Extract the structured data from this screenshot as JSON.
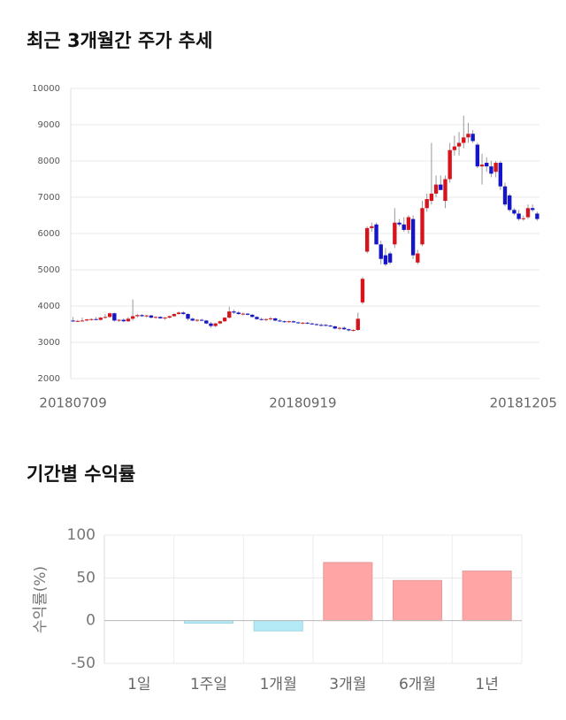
{
  "chart_data": [
    {
      "type": "candlestick",
      "title": "최근 3개월간 주가 추세",
      "categories": [
        "20180709",
        null,
        null,
        null,
        null,
        null,
        null,
        null,
        null,
        null,
        null,
        null,
        null,
        null,
        null,
        null,
        null,
        null,
        null,
        null,
        null,
        null,
        null,
        null,
        null,
        null,
        null,
        null,
        null,
        null,
        null,
        null,
        null,
        null,
        null,
        null,
        null,
        null,
        null,
        null,
        null,
        null,
        null,
        null,
        null,
        null,
        null,
        null,
        null,
        null,
        "20180919",
        null,
        null,
        null,
        null,
        null,
        null,
        null,
        null,
        null,
        null,
        null,
        null,
        null,
        null,
        null,
        null,
        null,
        null,
        null,
        null,
        null,
        null,
        null,
        null,
        null,
        null,
        null,
        null,
        null,
        null,
        null,
        null,
        null,
        null,
        null,
        null,
        null,
        null,
        null,
        null,
        null,
        null,
        null,
        null,
        null,
        null,
        null,
        "20181205",
        null,
        null,
        null
      ],
      "ohlc": [
        [
          3600,
          3700,
          3560,
          3580
        ],
        [
          3580,
          3620,
          3560,
          3590
        ],
        [
          3590,
          3680,
          3570,
          3600
        ],
        [
          3600,
          3650,
          3580,
          3630
        ],
        [
          3630,
          3660,
          3600,
          3640
        ],
        [
          3640,
          3700,
          3610,
          3620
        ],
        [
          3620,
          3700,
          3600,
          3680
        ],
        [
          3680,
          3780,
          3650,
          3700
        ],
        [
          3700,
          3820,
          3680,
          3800
        ],
        [
          3800,
          3820,
          3570,
          3600
        ],
        [
          3600,
          3640,
          3560,
          3620
        ],
        [
          3620,
          3660,
          3560,
          3580
        ],
        [
          3580,
          3700,
          3560,
          3650
        ],
        [
          3650,
          4180,
          3600,
          3720
        ],
        [
          3720,
          3780,
          3680,
          3750
        ],
        [
          3750,
          3780,
          3700,
          3720
        ],
        [
          3720,
          3760,
          3680,
          3740
        ],
        [
          3740,
          3760,
          3660,
          3680
        ],
        [
          3680,
          3720,
          3650,
          3700
        ],
        [
          3700,
          3720,
          3650,
          3660
        ],
        [
          3660,
          3700,
          3620,
          3680
        ],
        [
          3680,
          3740,
          3660,
          3720
        ],
        [
          3720,
          3800,
          3700,
          3780
        ],
        [
          3780,
          3850,
          3760,
          3820
        ],
        [
          3820,
          3860,
          3760,
          3780
        ],
        [
          3780,
          3800,
          3600,
          3650
        ],
        [
          3650,
          3680,
          3580,
          3600
        ],
        [
          3600,
          3640,
          3560,
          3620
        ],
        [
          3620,
          3650,
          3580,
          3600
        ],
        [
          3600,
          3620,
          3500,
          3520
        ],
        [
          3520,
          3560,
          3400,
          3450
        ],
        [
          3450,
          3540,
          3420,
          3520
        ],
        [
          3520,
          3600,
          3500,
          3580
        ],
        [
          3580,
          3700,
          3560,
          3680
        ],
        [
          3680,
          3980,
          3660,
          3850
        ],
        [
          3850,
          3900,
          3780,
          3820
        ],
        [
          3820,
          3860,
          3760,
          3780
        ],
        [
          3780,
          3820,
          3740,
          3790
        ],
        [
          3790,
          3810,
          3740,
          3760
        ],
        [
          3760,
          3780,
          3680,
          3700
        ],
        [
          3700,
          3720,
          3620,
          3640
        ],
        [
          3640,
          3680,
          3600,
          3620
        ],
        [
          3620,
          3660,
          3580,
          3640
        ],
        [
          3640,
          3700,
          3600,
          3660
        ],
        [
          3660,
          3680,
          3580,
          3600
        ],
        [
          3600,
          3640,
          3560,
          3580
        ],
        [
          3580,
          3600,
          3540,
          3560
        ],
        [
          3560,
          3600,
          3540,
          3580
        ],
        [
          3580,
          3600,
          3540,
          3550
        ],
        [
          3550,
          3570,
          3510,
          3530
        ],
        [
          3530,
          3560,
          3500,
          3540
        ],
        [
          3540,
          3560,
          3500,
          3520
        ],
        [
          3520,
          3540,
          3480,
          3500
        ],
        [
          3500,
          3520,
          3460,
          3480
        ],
        [
          3480,
          3520,
          3440,
          3460
        ],
        [
          3480,
          3500,
          3440,
          3460
        ],
        [
          3460,
          3480,
          3420,
          3440
        ],
        [
          3440,
          3460,
          3360,
          3380
        ],
        [
          3380,
          3420,
          3340,
          3400
        ],
        [
          3400,
          3440,
          3340,
          3360
        ],
        [
          3360,
          3380,
          3300,
          3330
        ],
        [
          3330,
          3360,
          3300,
          3340
        ],
        [
          3340,
          3820,
          3320,
          3650
        ],
        [
          4100,
          4800,
          4050,
          4750
        ],
        [
          5500,
          6200,
          5450,
          6150
        ],
        [
          6150,
          6300,
          6050,
          6200
        ],
        [
          6250,
          6300,
          5700,
          5700
        ],
        [
          5700,
          5800,
          5150,
          5300
        ],
        [
          5400,
          5600,
          5100,
          5150
        ],
        [
          5450,
          5500,
          5150,
          5200
        ],
        [
          5700,
          6700,
          5600,
          6300
        ],
        [
          6300,
          6400,
          6200,
          6250
        ],
        [
          6250,
          6450,
          6050,
          6100
        ],
        [
          6100,
          6500,
          6000,
          6450
        ],
        [
          6400,
          6500,
          5300,
          5400
        ],
        [
          5200,
          5550,
          5150,
          5450
        ],
        [
          5700,
          6900,
          5650,
          6700
        ],
        [
          6700,
          7100,
          6600,
          6950
        ],
        [
          6900,
          8500,
          6800,
          7100
        ],
        [
          7100,
          7600,
          7000,
          7350
        ],
        [
          7350,
          7600,
          7200,
          7200
        ],
        [
          6900,
          7600,
          6700,
          7500
        ],
        [
          7500,
          8500,
          7400,
          8300
        ],
        [
          8300,
          8700,
          8150,
          8400
        ],
        [
          8400,
          8800,
          8150,
          8500
        ],
        [
          8500,
          9250,
          8350,
          8650
        ],
        [
          8650,
          9050,
          8500,
          8750
        ],
        [
          8750,
          8850,
          8500,
          8550
        ],
        [
          8450,
          8500,
          7800,
          7850
        ],
        [
          7850,
          8200,
          7350,
          7900
        ],
        [
          7950,
          8100,
          7700,
          7850
        ],
        [
          7850,
          8000,
          7550,
          7650
        ],
        [
          7700,
          8000,
          7550,
          7950
        ],
        [
          7950,
          8000,
          7200,
          7300
        ],
        [
          7300,
          7400,
          6750,
          6800
        ],
        [
          7050,
          7100,
          6600,
          6650
        ],
        [
          6650,
          6700,
          6500,
          6550
        ],
        [
          6550,
          6650,
          6350,
          6400
        ],
        [
          6400,
          6500,
          6350,
          6420
        ],
        [
          6450,
          6800,
          6400,
          6700
        ],
        [
          6700,
          6800,
          6600,
          6650
        ],
        [
          6550,
          6600,
          6350,
          6400
        ]
      ],
      "up_color": "#d7141c",
      "down_color": "#1414c8",
      "ylim": [
        2000,
        10000
      ],
      "yticks": [
        2000,
        3000,
        4000,
        5000,
        6000,
        7000,
        8000,
        9000,
        10000
      ],
      "grid": true
    },
    {
      "type": "bar",
      "title": "기간별 수익률",
      "y_label": "수익률(%)",
      "categories": [
        "1일",
        "1주일",
        "1개월",
        "3개월",
        "6개월",
        "1년"
      ],
      "values": [
        0,
        -3,
        -12,
        68,
        47,
        58
      ],
      "positive_color": "#ffa5a5",
      "negative_color": "#b3eaf6",
      "ylim": [
        -50,
        100
      ],
      "yticks": [
        -50,
        0,
        50,
        100
      ],
      "grid": true
    }
  ]
}
